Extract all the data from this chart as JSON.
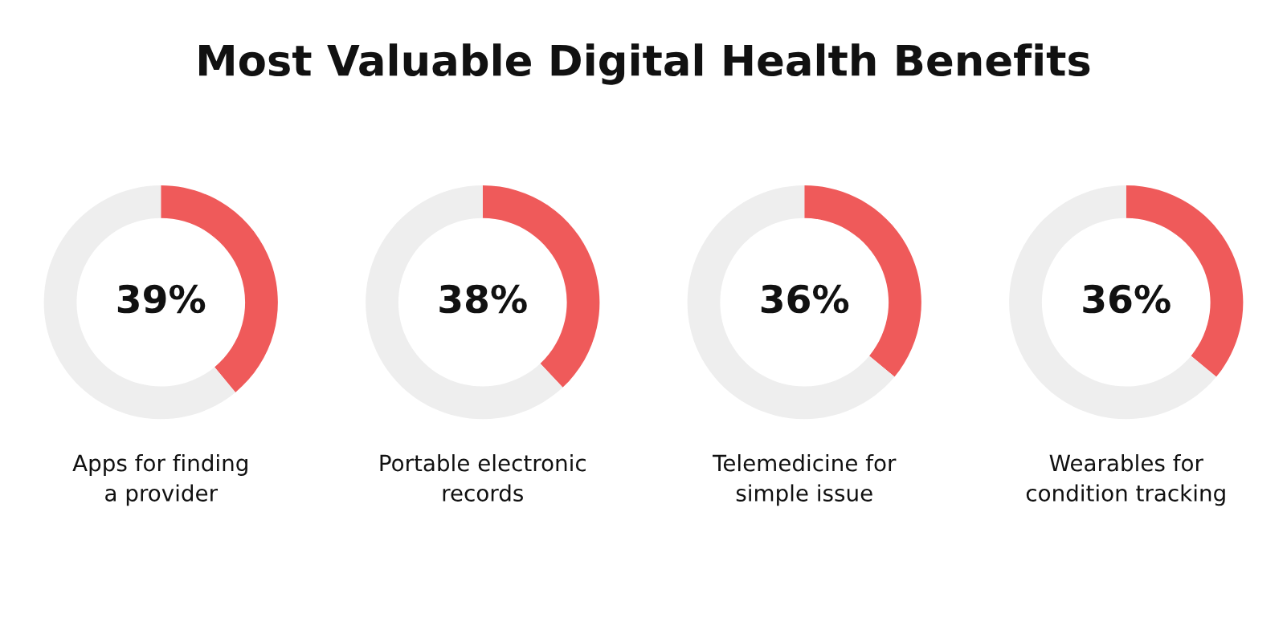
{
  "chart_data": [
    {
      "type": "donut",
      "title": "Most Valuable Digital Health Benefits",
      "xlabel": "Apps for finding\na provider",
      "categories": [
        null,
        null
      ],
      "values": [
        39,
        61
      ],
      "colors": [
        "#ef5a5a",
        "#eeeeee"
      ],
      "value_labels": [
        "39%",
        null
      ]
    },
    {
      "type": "donut",
      "xlabel": "Portable electronic\nrecords",
      "categories": [
        null,
        null
      ],
      "values": [
        38,
        62
      ],
      "colors": [
        "#ef5a5a",
        "#eeeeee"
      ],
      "value_labels": [
        "38%",
        null
      ]
    },
    {
      "type": "donut",
      "xlabel": "Telemedicine for\nsimple issue",
      "categories": [
        null,
        null
      ],
      "values": [
        36,
        64
      ],
      "colors": [
        "#ef5a5a",
        "#eeeeee"
      ],
      "value_labels": [
        "36%",
        null
      ]
    },
    {
      "type": "donut",
      "xlabel": "Wearables for\ncondition tracking",
      "categories": [
        null,
        null
      ],
      "values": [
        36,
        64
      ],
      "colors": [
        "#ef5a5a",
        "#eeeeee"
      ],
      "value_labels": [
        "36%",
        null
      ]
    }
  ]
}
